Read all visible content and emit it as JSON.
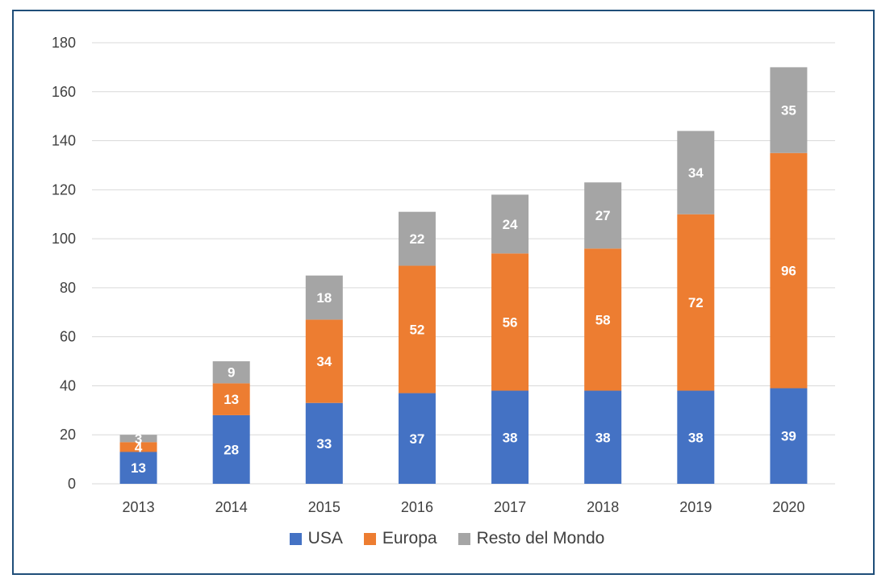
{
  "chart_data": {
    "type": "bar",
    "stacked": true,
    "categories": [
      "2013",
      "2014",
      "2015",
      "2016",
      "2017",
      "2018",
      "2019",
      "2020"
    ],
    "series": [
      {
        "name": "USA",
        "color": "#4472c4",
        "label_color": "#ffffff",
        "values": [
          13,
          28,
          33,
          37,
          38,
          38,
          38,
          39
        ]
      },
      {
        "name": "Europa",
        "color": "#ed7d31",
        "label_color": "#ffffff",
        "values": [
          4,
          13,
          34,
          52,
          56,
          58,
          72,
          96
        ]
      },
      {
        "name": "Resto del Mondo",
        "color": "#a5a5a5",
        "label_color": "#ffffff",
        "values": [
          3,
          9,
          18,
          22,
          24,
          27,
          34,
          35
        ]
      }
    ],
    "y_ticks": [
      0,
      20,
      40,
      60,
      80,
      100,
      120,
      140,
      160,
      180
    ],
    "ylim": [
      0,
      180
    ],
    "grid": true,
    "legend_position": "bottom",
    "gridline_color": "#d9d9d9",
    "frame_color": "#1f4e79"
  }
}
